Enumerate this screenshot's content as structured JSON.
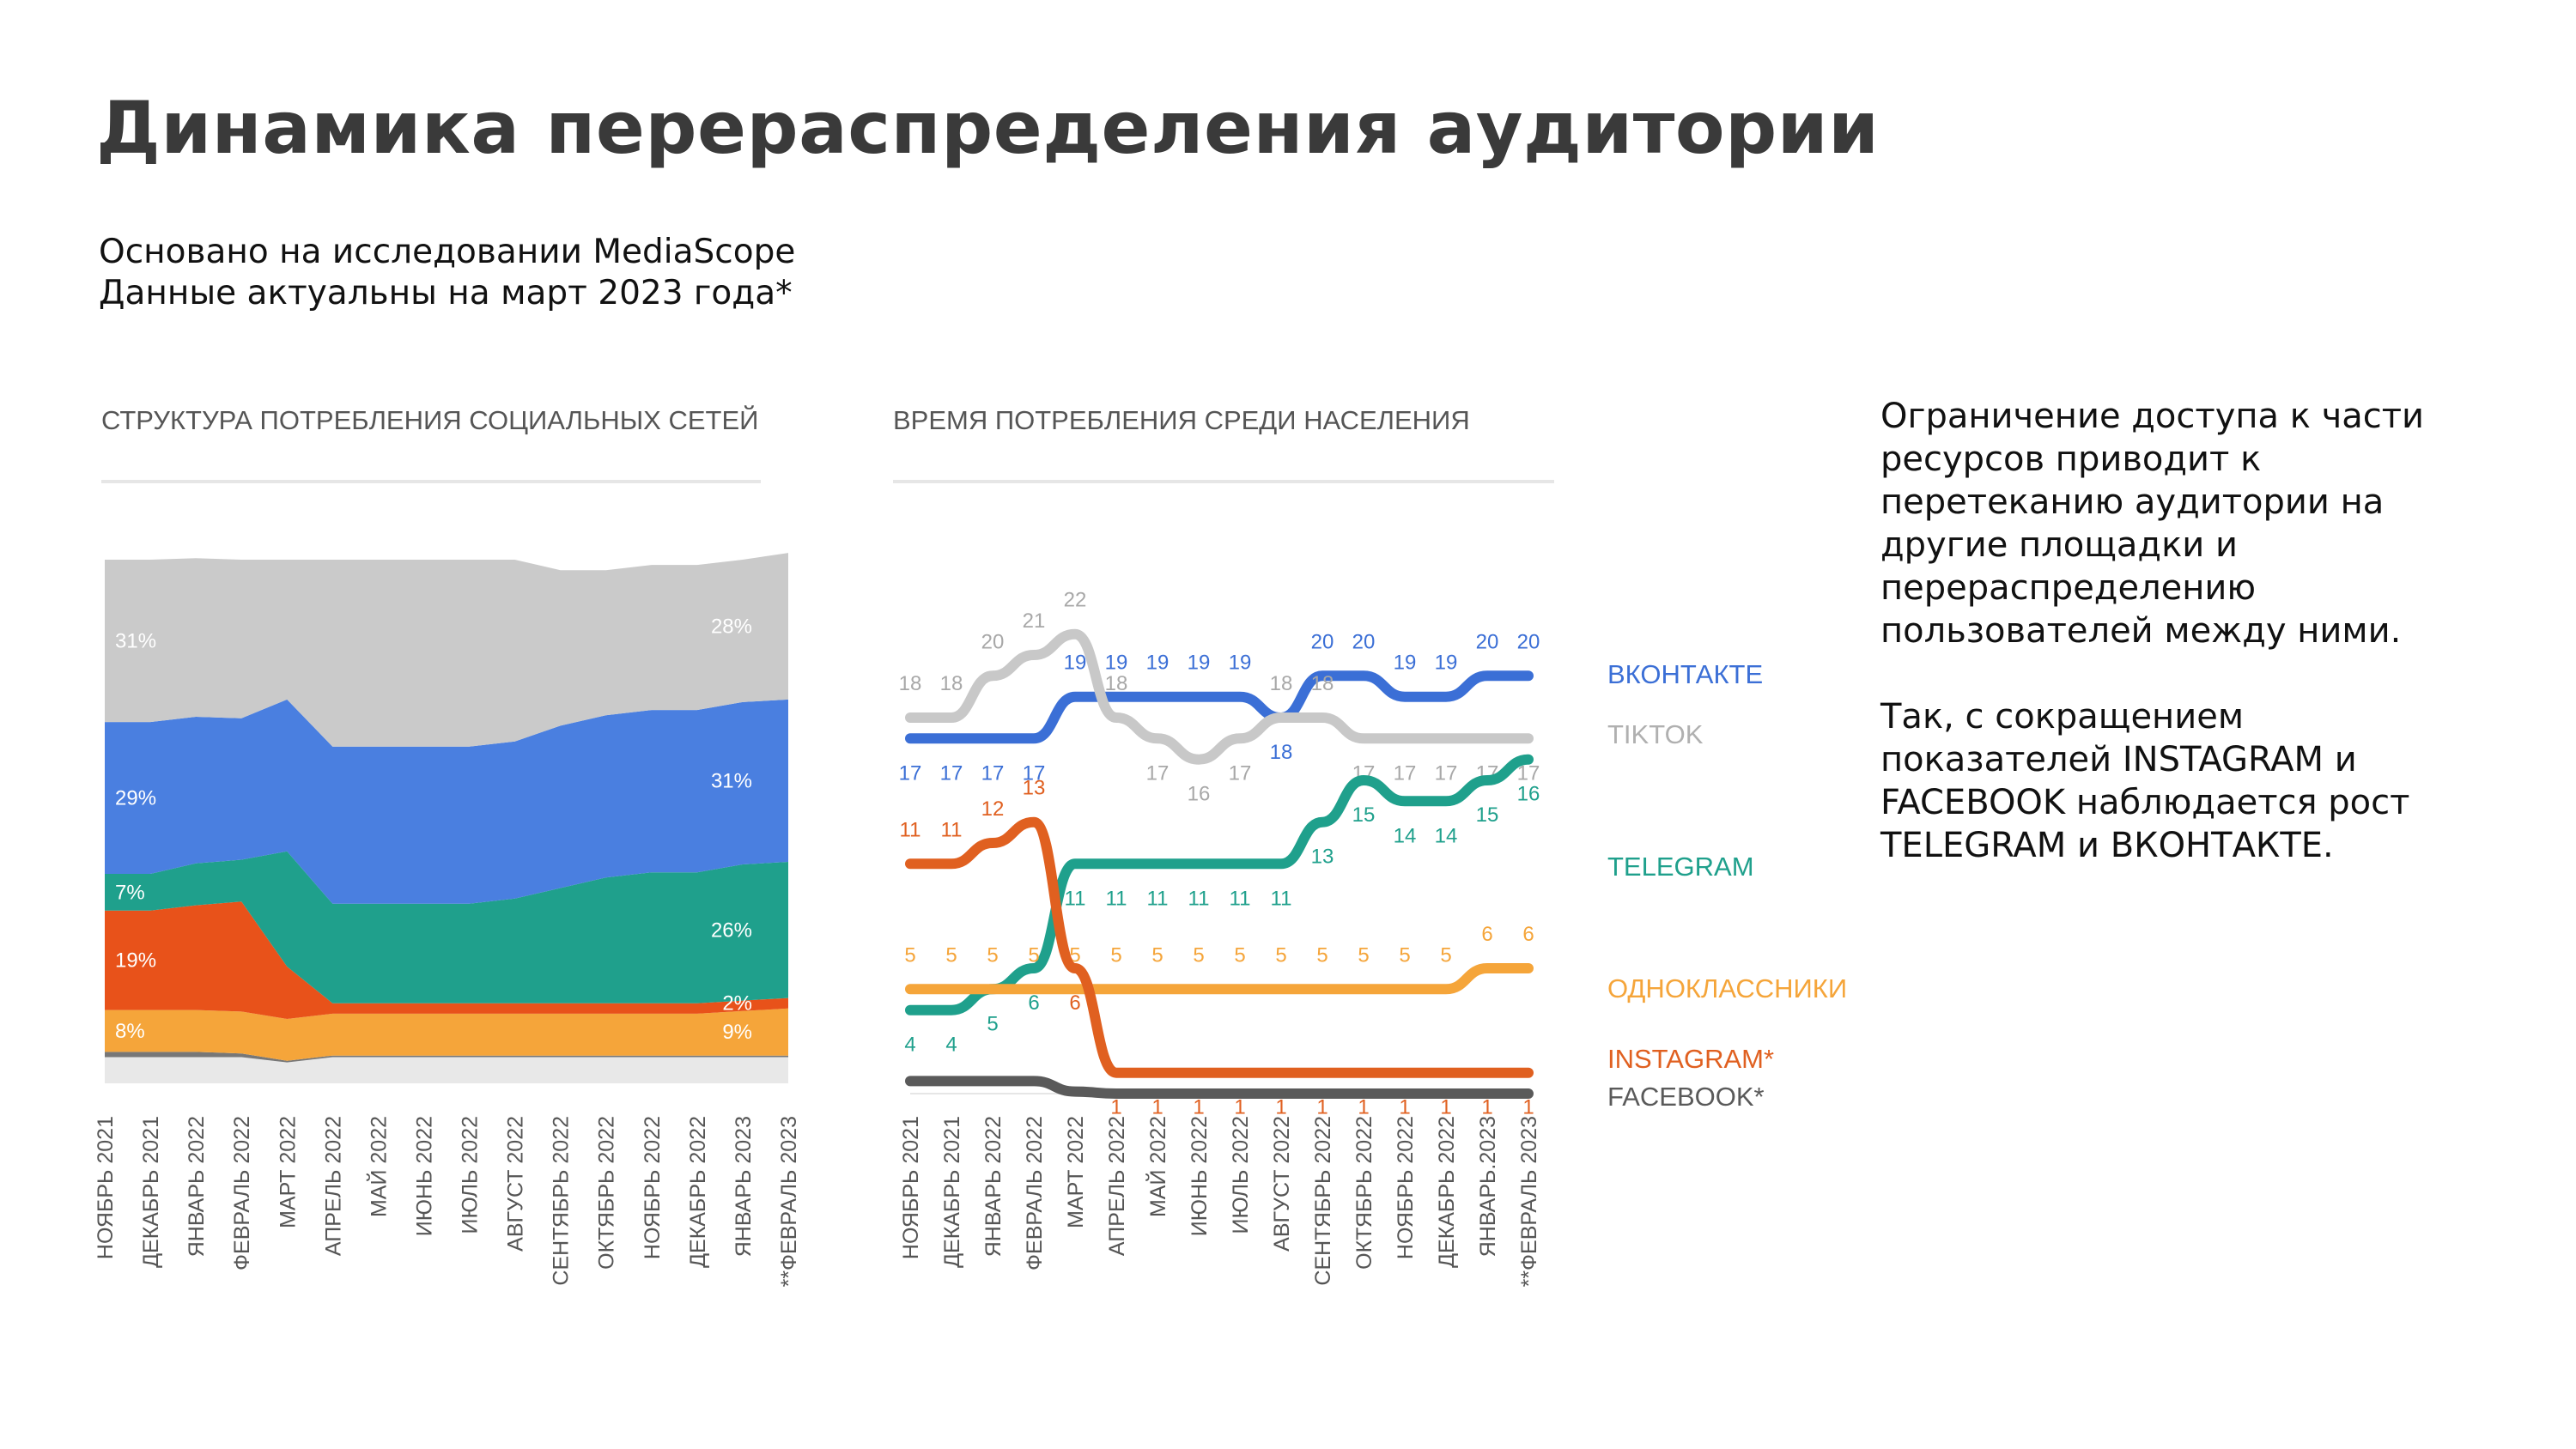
{
  "header": {
    "title": "Динамика перераспределения аудитории",
    "subtitle_line1": "Основано на исследовании MediaScope",
    "subtitle_line2": "Данные актуальны на март 2023 года*"
  },
  "side_text": {
    "paragraph1": "Ограничение доступа к части ресурсов приводит к перетеканию аудитории на другие площадки и перераспределению пользователей между ними.",
    "paragraph2": "Так, с сокращением показателей INSTAGRAM и FACEBOOK наблюдается рост TELEGRAM и ВКОНТАКТЕ."
  },
  "chart_data": [
    {
      "type": "area",
      "stacked": true,
      "title": "СТРУКТУРА ПОТРЕБЛЕНИЯ СОЦИАЛЬНЫХ СЕТЕЙ",
      "categories": [
        "НОЯБРЬ 2021",
        "ДЕКАБРЬ 2021",
        "ЯНВАРЬ 2022",
        "ФЕВРАЛЬ 2022",
        "МАРТ 2022",
        "АПРЕЛЬ 2022",
        "МАЙ 2022",
        "ИЮНЬ 2022",
        "ИЮЛЬ 2022",
        "АВГУСТ 2022",
        "СЕНТЯБРЬ 2022",
        "ОКТЯБРЬ 2022",
        "НОЯБРЬ 2022",
        "ДЕКАБРЬ 2022",
        "ЯНВАРЬ 2023",
        "**ФЕВРАЛЬ 2023"
      ],
      "ylim": [
        0,
        100
      ],
      "series": [
        {
          "key": "other",
          "color": "#e8e8e8",
          "values": [
            5,
            5,
            5,
            5,
            4,
            5,
            5,
            5,
            5,
            5,
            5,
            5,
            5,
            5,
            5,
            5
          ]
        },
        {
          "key": "facebook",
          "color": "#777777",
          "values": [
            1,
            1,
            1,
            0.7,
            0.3,
            0.3,
            0.3,
            0.3,
            0.3,
            0.3,
            0.3,
            0.3,
            0.3,
            0.3,
            0.3,
            0.3
          ]
        },
        {
          "key": "odnoklassniki",
          "color": "#f5a53a",
          "values": [
            8,
            8,
            8,
            8,
            8,
            8,
            8,
            8,
            8,
            8,
            8,
            8,
            8,
            8,
            8.5,
            9
          ]
        },
        {
          "key": "instagram",
          "color": "#e8521a",
          "values": [
            19,
            19,
            20,
            21,
            10,
            2,
            2,
            2,
            2,
            2,
            2,
            2,
            2,
            2,
            2,
            2
          ]
        },
        {
          "key": "telegram",
          "color": "#1fa08c",
          "values": [
            7,
            7,
            8,
            8,
            22,
            19,
            19,
            19,
            19,
            20,
            22,
            24,
            25,
            25,
            26,
            26
          ]
        },
        {
          "key": "vkontakte",
          "color": "#4a7fe0",
          "values": [
            29,
            29,
            28,
            27,
            29,
            30,
            30,
            30,
            30,
            30,
            31,
            31,
            31,
            31,
            31,
            31
          ]
        },
        {
          "key": "tiktok",
          "color": "#cacaca",
          "values": [
            31,
            31,
            30.3,
            30.3,
            26.7,
            35.7,
            35.7,
            35.7,
            35.7,
            34.7,
            29.7,
            27.7,
            27.7,
            27.7,
            27.2,
            28
          ]
        }
      ],
      "labels_start": [
        {
          "series": "tiktok",
          "text": "31%"
        },
        {
          "series": "vkontakte",
          "text": "29%"
        },
        {
          "series": "telegram",
          "text": "7%"
        },
        {
          "series": "instagram",
          "text": "19%"
        },
        {
          "series": "odnoklassniki",
          "text": "8%"
        }
      ],
      "labels_end": [
        {
          "series": "tiktok",
          "text": "28%"
        },
        {
          "series": "vkontakte",
          "text": "31%"
        },
        {
          "series": "telegram",
          "text": "26%"
        },
        {
          "series": "instagram",
          "text": "2%"
        },
        {
          "series": "odnoklassniki",
          "text": "9%"
        }
      ]
    },
    {
      "type": "line",
      "title": "ВРЕМЯ ПОТРЕБЛЕНИЯ СРЕДИ НАСЕЛЕНИЯ",
      "categories": [
        "НОЯБРЬ 2021",
        "ДЕКАБРЬ 2021",
        "ЯНВАРЬ 2022",
        "ФЕВРАЛЬ 2022",
        "МАРТ 2022",
        "АПРЕЛЬ 2022",
        "МАЙ 2022",
        "ИЮНЬ 2022",
        "ИЮЛЬ 2022",
        "АВГУСТ 2022",
        "СЕНТЯБРЬ 2022",
        "ОКТЯБРЬ 2022",
        "НОЯБРЬ 2022",
        "ДЕКАБРЬ 2022",
        "ЯНВАРЬ.2023",
        "**ФЕВРАЛЬ 2023"
      ],
      "ylim": [
        0,
        24
      ],
      "series": [
        {
          "name": "ВКОНТАКТЕ",
          "color": "#3b6fd6",
          "values": [
            17,
            17,
            17,
            17,
            19,
            19,
            19,
            19,
            19,
            18,
            20,
            20,
            19,
            19,
            20,
            20
          ]
        },
        {
          "name": "TIKTOK",
          "color": "#c8c8c8",
          "values": [
            18,
            18,
            20,
            21,
            22,
            18,
            17,
            16,
            17,
            18,
            18,
            17,
            17,
            17,
            17,
            17
          ]
        },
        {
          "name": "TELEGRAM",
          "color": "#1fa08c",
          "values": [
            4,
            4,
            5,
            6,
            11,
            11,
            11,
            11,
            11,
            11,
            13,
            15,
            14,
            14,
            15,
            16
          ]
        },
        {
          "name": "ОДНОКЛАССНИКИ",
          "color": "#f5a53a",
          "values": [
            5,
            5,
            5,
            5,
            5,
            5,
            5,
            5,
            5,
            5,
            5,
            5,
            5,
            5,
            6,
            6
          ]
        },
        {
          "name": "INSTAGRAM*",
          "color": "#e06020",
          "values": [
            11,
            11,
            12,
            13,
            6,
            1,
            1,
            1,
            1,
            1,
            1,
            1,
            1,
            1,
            1,
            1
          ]
        },
        {
          "name": "FACEBOOK*",
          "color": "#5a5a5a",
          "values": [
            0.6,
            0.6,
            0.6,
            0.6,
            0.1,
            0,
            0,
            0,
            0,
            0,
            0,
            0,
            0,
            0,
            0,
            0
          ]
        }
      ],
      "data_labels": [
        {
          "series": "ВКОНТАКТЕ",
          "show": [
            0,
            1,
            2,
            3,
            4,
            5,
            6,
            7,
            8,
            9,
            10,
            11,
            12,
            13,
            14,
            15
          ]
        },
        {
          "series": "TIKTOK",
          "show": [
            0,
            1,
            2,
            3,
            4,
            5,
            6,
            7,
            8,
            9,
            10,
            11,
            12,
            13,
            14,
            15
          ]
        },
        {
          "series": "TELEGRAM",
          "show": [
            0,
            1,
            2,
            3,
            4,
            5,
            6,
            7,
            8,
            9,
            10,
            11,
            12,
            13,
            14,
            15
          ]
        },
        {
          "series": "ОДНОКЛАССНИКИ",
          "show": [
            0,
            1,
            2,
            3,
            4,
            5,
            6,
            7,
            8,
            9,
            10,
            11,
            12,
            13,
            14,
            15
          ]
        },
        {
          "series": "INSTAGRAM*",
          "show": [
            0,
            1,
            2,
            3,
            4,
            5,
            6,
            7,
            8,
            9,
            10,
            11,
            12,
            13,
            14,
            15
          ]
        }
      ]
    }
  ]
}
